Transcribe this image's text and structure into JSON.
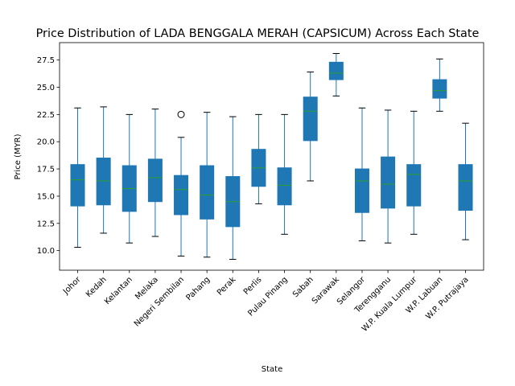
{
  "chart_data": {
    "type": "box",
    "title": "Price Distribution of LADA BENGGALA MERAH (CAPSICUM) Across Each State",
    "xlabel": "State",
    "ylabel": "Price (MYR)",
    "ylim": [
      8.2,
      29.1
    ],
    "yticks": [
      10.0,
      12.5,
      15.0,
      17.5,
      20.0,
      22.5,
      25.0,
      27.5
    ],
    "ytick_labels": [
      "10.0",
      "12.5",
      "15.0",
      "17.5",
      "20.0",
      "22.5",
      "25.0",
      "27.5"
    ],
    "grid": false,
    "box_color": "#1f77b4",
    "median_color": "#2ca02c",
    "categories": [
      "Johor",
      "Kedah",
      "Kelantan",
      "Melaka",
      "Negeri Sembilan",
      "Pahang",
      "Perak",
      "Perlis",
      "Pulau Pinang",
      "Sabah",
      "Sarawak",
      "Selangor",
      "Terengganu",
      "W.P. Kuala Lumpur",
      "W.P. Labuan",
      "W.P. Putrajaya"
    ],
    "boxes": [
      {
        "whislo": 10.3,
        "q1": 14.1,
        "med": 16.5,
        "q3": 17.9,
        "whishi": 23.1,
        "fliers": []
      },
      {
        "whislo": 11.6,
        "q1": 14.2,
        "med": 16.4,
        "q3": 18.5,
        "whishi": 23.2,
        "fliers": []
      },
      {
        "whislo": 10.7,
        "q1": 13.6,
        "med": 15.7,
        "q3": 17.8,
        "whishi": 22.5,
        "fliers": []
      },
      {
        "whislo": 11.3,
        "q1": 14.5,
        "med": 16.7,
        "q3": 18.4,
        "whishi": 23.0,
        "fliers": []
      },
      {
        "whislo": 9.5,
        "q1": 13.3,
        "med": 15.6,
        "q3": 16.9,
        "whishi": 20.4,
        "fliers": [
          22.5
        ]
      },
      {
        "whislo": 9.4,
        "q1": 12.9,
        "med": 15.1,
        "q3": 17.8,
        "whishi": 22.7,
        "fliers": []
      },
      {
        "whislo": 9.2,
        "q1": 12.2,
        "med": 14.5,
        "q3": 16.8,
        "whishi": 22.3,
        "fliers": []
      },
      {
        "whislo": 14.3,
        "q1": 15.9,
        "med": 17.6,
        "q3": 19.3,
        "whishi": 22.5,
        "fliers": []
      },
      {
        "whislo": 11.5,
        "q1": 14.2,
        "med": 16.0,
        "q3": 17.6,
        "whishi": 22.5,
        "fliers": []
      },
      {
        "whislo": 16.4,
        "q1": 20.1,
        "med": 22.8,
        "q3": 24.1,
        "whishi": 26.4,
        "fliers": []
      },
      {
        "whislo": 24.2,
        "q1": 25.7,
        "med": 26.3,
        "q3": 27.3,
        "whishi": 28.1,
        "fliers": []
      },
      {
        "whislo": 10.9,
        "q1": 13.5,
        "med": 16.4,
        "q3": 17.5,
        "whishi": 23.1,
        "fliers": []
      },
      {
        "whislo": 10.7,
        "q1": 13.9,
        "med": 16.1,
        "q3": 18.6,
        "whishi": 22.9,
        "fliers": []
      },
      {
        "whislo": 11.5,
        "q1": 14.1,
        "med": 17.0,
        "q3": 17.9,
        "whishi": 22.8,
        "fliers": []
      },
      {
        "whislo": 22.8,
        "q1": 24.0,
        "med": 24.7,
        "q3": 25.7,
        "whishi": 27.6,
        "fliers": []
      },
      {
        "whislo": 11.0,
        "q1": 13.7,
        "med": 16.4,
        "q3": 17.9,
        "whishi": 21.7,
        "fliers": []
      }
    ]
  }
}
